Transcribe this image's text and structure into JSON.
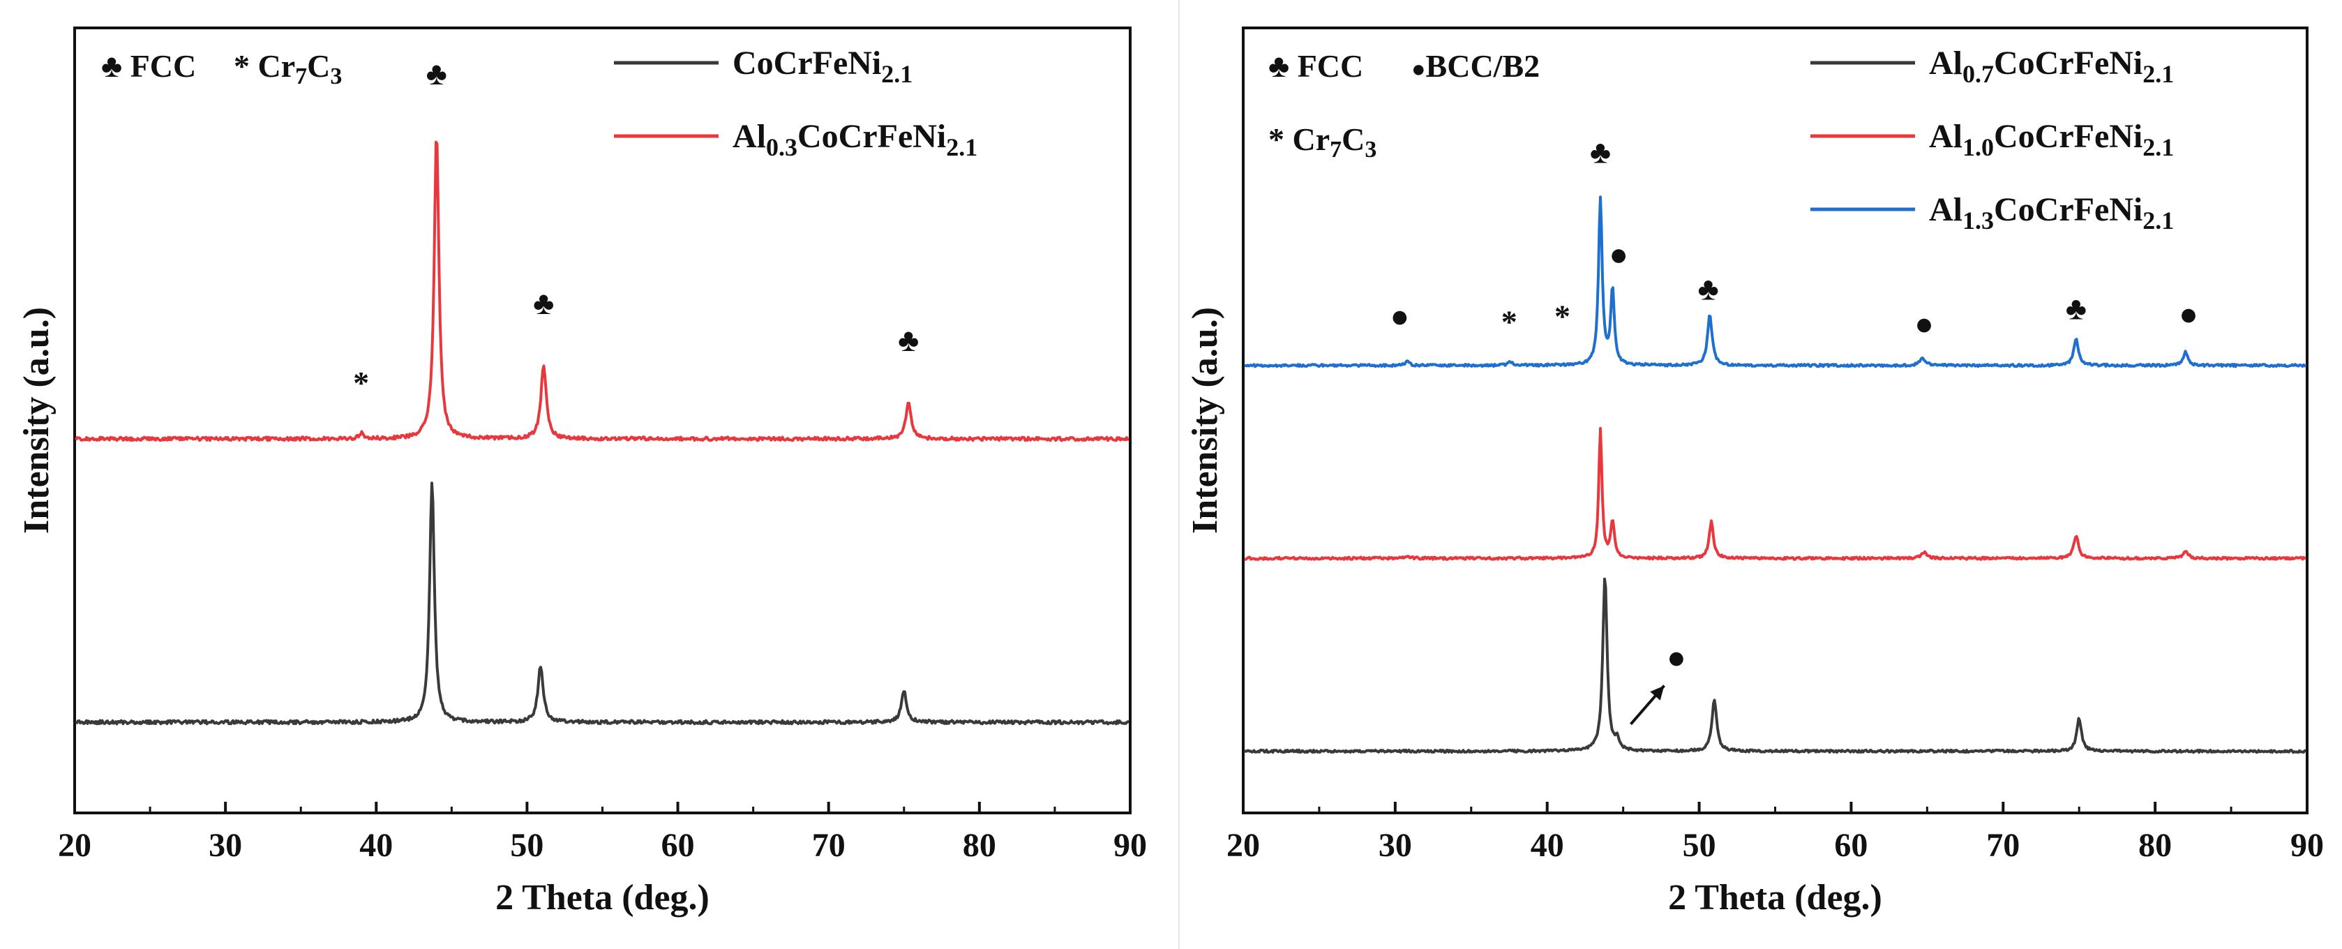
{
  "chart_data": [
    {
      "type": "line",
      "panel": "left",
      "xlabel": "2 Theta (deg.)",
      "ylabel": "Intensity (a.u.)",
      "xlim": [
        20,
        90
      ],
      "xticks": [
        20,
        30,
        40,
        50,
        60,
        70,
        80,
        90
      ],
      "yticks": "none (arbitrary units)",
      "legend_position": "top-right",
      "phase_key": [
        {
          "symbol": "♣",
          "text": "FCC"
        },
        {
          "symbol": "*",
          "text": "Cr",
          "sub1": "7",
          "text2": "C",
          "sub2": "3"
        }
      ],
      "series": [
        {
          "name": "CoCrFeNi2.1",
          "legend": {
            "base": "CoCrFeNi",
            "sub": "2.1"
          },
          "color": "#3a3a3a",
          "baseline": 0.0,
          "peaks": [
            {
              "x": 43.7,
              "y": 0.85,
              "w": 0.22
            },
            {
              "x": 50.9,
              "y": 0.2,
              "w": 0.25
            },
            {
              "x": 75.0,
              "y": 0.11,
              "w": 0.25
            }
          ]
        },
        {
          "name": "Al0.3CoCrFeNi2.1",
          "legend": {
            "pre": "Al",
            "sub1": "0.3",
            "base": "CoCrFeNi",
            "sub2": "2.1"
          },
          "color": "#e8383d",
          "baseline": 1.0,
          "peaks": [
            {
              "x": 39.0,
              "y": 0.02,
              "w": 0.2
            },
            {
              "x": 44.0,
              "y": 1.08,
              "w": 0.22
            },
            {
              "x": 51.1,
              "y": 0.26,
              "w": 0.25
            },
            {
              "x": 75.3,
              "y": 0.13,
              "w": 0.25
            }
          ]
        }
      ],
      "markers": [
        {
          "symbol": "*",
          "x": 39.0,
          "y": 1.16
        },
        {
          "symbol": "♣",
          "x": 44.0,
          "y": 2.25
        },
        {
          "symbol": "♣",
          "x": 51.1,
          "y": 1.44
        },
        {
          "symbol": "♣",
          "x": 75.3,
          "y": 1.31
        }
      ]
    },
    {
      "type": "line",
      "panel": "right",
      "xlabel": "2 Theta (deg.)",
      "ylabel": "Intensity (a.u.)",
      "xlim": [
        20,
        90
      ],
      "xticks": [
        20,
        30,
        40,
        50,
        60,
        70,
        80,
        90
      ],
      "yticks": "none (arbitrary units)",
      "legend_position": "top-right",
      "phase_key": [
        {
          "symbol": "♣",
          "text": "FCC"
        },
        {
          "symbol": "●",
          "text": "BCC/B2"
        },
        {
          "symbol": "*",
          "text": "Cr",
          "sub1": "7",
          "text2": "C",
          "sub2": "3"
        }
      ],
      "series": [
        {
          "name": "Al0.7CoCrFeNi2.1",
          "legend": {
            "pre": "Al",
            "sub1": "0.7",
            "base": "CoCrFeNi",
            "sub2": "2.1"
          },
          "color": "#3a3a3a",
          "baseline": 0.0,
          "peaks": [
            {
              "x": 43.8,
              "y": 0.91,
              "w": 0.2
            },
            {
              "x": 44.6,
              "y": 0.05,
              "w": 0.2
            },
            {
              "x": 51.0,
              "y": 0.27,
              "w": 0.22
            },
            {
              "x": 75.0,
              "y": 0.17,
              "w": 0.22
            }
          ]
        },
        {
          "name": "Al1.0CoCrFeNi2.1",
          "legend": {
            "pre": "Al",
            "sub1": "1.0",
            "base": "CoCrFeNi",
            "sub2": "2.1"
          },
          "color": "#e8383d",
          "baseline": 1.0,
          "peaks": [
            {
              "x": 30.8,
              "y": 0.015,
              "w": 0.2
            },
            {
              "x": 43.5,
              "y": 0.67,
              "w": 0.15
            },
            {
              "x": 44.3,
              "y": 0.19,
              "w": 0.17
            },
            {
              "x": 50.8,
              "y": 0.19,
              "w": 0.2
            },
            {
              "x": 64.8,
              "y": 0.03,
              "w": 0.25
            },
            {
              "x": 74.8,
              "y": 0.12,
              "w": 0.22
            },
            {
              "x": 82.0,
              "y": 0.04,
              "w": 0.22
            }
          ]
        },
        {
          "name": "Al1.3CoCrFeNi2.1",
          "legend": {
            "pre": "Al",
            "sub1": "1.3",
            "base": "CoCrFeNi",
            "sub2": "2.1"
          },
          "color": "#1f6fd1",
          "baseline": 2.0,
          "peaks": [
            {
              "x": 30.8,
              "y": 0.02,
              "w": 0.2
            },
            {
              "x": 37.6,
              "y": 0.02,
              "w": 0.2
            },
            {
              "x": 43.5,
              "y": 0.86,
              "w": 0.17
            },
            {
              "x": 44.3,
              "y": 0.39,
              "w": 0.17
            },
            {
              "x": 50.7,
              "y": 0.26,
              "w": 0.22
            },
            {
              "x": 64.7,
              "y": 0.04,
              "w": 0.25
            },
            {
              "x": 74.8,
              "y": 0.14,
              "w": 0.22
            },
            {
              "x": 82.0,
              "y": 0.07,
              "w": 0.22
            }
          ]
        }
      ],
      "markers": [
        {
          "symbol": "♣",
          "x": 43.5,
          "y": 3.05
        },
        {
          "symbol": "●",
          "x": 44.7,
          "y": 2.52
        },
        {
          "symbol": "♣",
          "x": 50.6,
          "y": 2.34
        },
        {
          "symbol": "♣",
          "x": 74.8,
          "y": 2.24
        },
        {
          "symbol": "●",
          "x": 30.3,
          "y": 2.2
        },
        {
          "symbol": "*",
          "x": 37.5,
          "y": 2.17
        },
        {
          "symbol": "*",
          "x": 41.0,
          "y": 2.2
        },
        {
          "symbol": "●",
          "x": 64.8,
          "y": 2.16
        },
        {
          "symbol": "●",
          "x": 82.2,
          "y": 2.21
        },
        {
          "symbol": "●",
          "x": 48.5,
          "y": 0.43
        }
      ],
      "annotations": [
        {
          "type": "arrow",
          "from": [
            45.5,
            0.14
          ],
          "to": [
            47.7,
            0.34
          ],
          "points_to_series": "Al0.7CoCrFeNi2.1",
          "label": "BCC/B2"
        }
      ]
    }
  ]
}
